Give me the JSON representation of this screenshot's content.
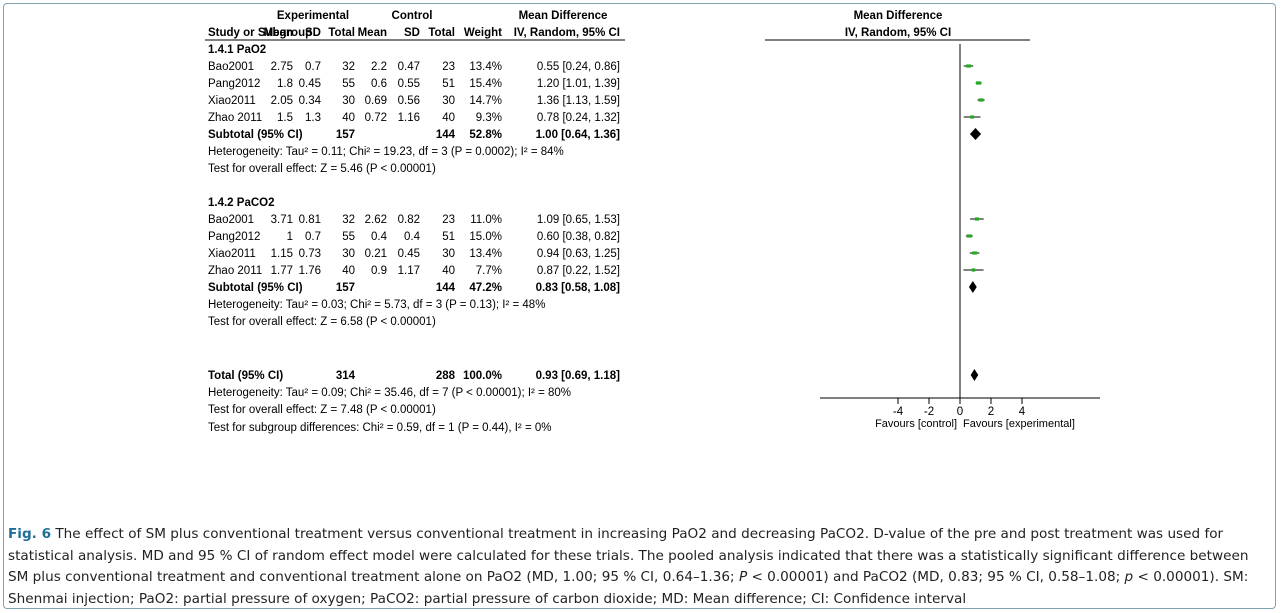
{
  "headers": {
    "group_experimental": "Experimental",
    "group_control": "Control",
    "group_md": "Mean Difference",
    "plot_title": "Mean Difference",
    "study": "Study or Subgroup",
    "mean": "Mean",
    "sd": "SD",
    "total": "Total",
    "weight": "Weight",
    "md_col": "IV, Random, 95% CI",
    "plot_subtitle": "IV, Random, 95% CI"
  },
  "subgroups": [
    {
      "title": "1.4.1 PaO2",
      "studies": [
        {
          "name": "Bao2001",
          "e_mean": "2.75",
          "e_sd": "0.7",
          "e_total": "32",
          "c_mean": "2.2",
          "c_sd": "0.47",
          "c_total": "23",
          "weight": "13.4%",
          "ci": "0.55 [0.24, 0.86]"
        },
        {
          "name": "Pang2012",
          "e_mean": "1.8",
          "e_sd": "0.45",
          "e_total": "55",
          "c_mean": "0.6",
          "c_sd": "0.55",
          "c_total": "51",
          "weight": "15.4%",
          "ci": "1.20 [1.01, 1.39]"
        },
        {
          "name": "Xiao2011",
          "e_mean": "2.05",
          "e_sd": "0.34",
          "e_total": "30",
          "c_mean": "0.69",
          "c_sd": "0.56",
          "c_total": "30",
          "weight": "14.7%",
          "ci": "1.36 [1.13, 1.59]"
        },
        {
          "name": "Zhao 2011",
          "e_mean": "1.5",
          "e_sd": "1.3",
          "e_total": "40",
          "c_mean": "0.72",
          "c_sd": "1.16",
          "c_total": "40",
          "weight": "9.3%",
          "ci": "0.78 [0.24, 1.32]"
        }
      ],
      "subtotal": {
        "label": "Subtotal (95% CI)",
        "e_total": "157",
        "c_total": "144",
        "weight": "52.8%",
        "ci": "1.00 [0.64, 1.36]"
      },
      "heterogeneity": "Heterogeneity: Tau² = 0.11; Chi² = 19.23, df = 3 (P = 0.0002); I² = 84%",
      "overall": "Test for overall effect: Z = 5.46 (P < 0.00001)"
    },
    {
      "title": "1.4.2 PaCO2",
      "studies": [
        {
          "name": "Bao2001",
          "e_mean": "3.71",
          "e_sd": "0.81",
          "e_total": "32",
          "c_mean": "2.62",
          "c_sd": "0.82",
          "c_total": "23",
          "weight": "11.0%",
          "ci": "1.09 [0.65, 1.53]"
        },
        {
          "name": "Pang2012",
          "e_mean": "1",
          "e_sd": "0.7",
          "e_total": "55",
          "c_mean": "0.4",
          "c_sd": "0.4",
          "c_total": "51",
          "weight": "15.0%",
          "ci": "0.60 [0.38, 0.82]"
        },
        {
          "name": "Xiao2011",
          "e_mean": "1.15",
          "e_sd": "0.73",
          "e_total": "30",
          "c_mean": "0.21",
          "c_sd": "0.45",
          "c_total": "30",
          "weight": "13.4%",
          "ci": "0.94 [0.63, 1.25]"
        },
        {
          "name": "Zhao 2011",
          "e_mean": "1.77",
          "e_sd": "1.76",
          "e_total": "40",
          "c_mean": "0.9",
          "c_sd": "1.17",
          "c_total": "40",
          "weight": "7.7%",
          "ci": "0.87 [0.22, 1.52]"
        }
      ],
      "subtotal": {
        "label": "Subtotal (95% CI)",
        "e_total": "157",
        "c_total": "144",
        "weight": "47.2%",
        "ci": "0.83 [0.58, 1.08]"
      },
      "heterogeneity": "Heterogeneity: Tau² = 0.03; Chi² = 5.73, df = 3 (P = 0.13); I² = 48%",
      "overall": "Test for overall effect: Z = 6.58 (P < 0.00001)"
    }
  ],
  "total": {
    "label": "Total (95% CI)",
    "e_total": "314",
    "c_total": "288",
    "weight": "100.0%",
    "ci": "0.93 [0.69, 1.18]"
  },
  "total_heterogeneity": "Heterogeneity: Tau² = 0.09; Chi² = 35.46, df = 7 (P < 0.00001); I² = 80%",
  "total_overall": "Test for overall effect: Z = 7.48 (P < 0.00001)",
  "subgroup_diff": "Test for subgroup differences: Chi² = 0.59, df = 1 (P = 0.44), I² = 0%",
  "axis": {
    "ticks": [
      "-4",
      "-2",
      "0",
      "2",
      "4"
    ],
    "favours_left": "Favours [control]",
    "favours_right": "Favours [experimental]"
  },
  "caption": {
    "label": "Fig. 6",
    "part1": "The effect of SM plus conventional treatment versus conventional treatment in increasing PaO2 and decreasing PaCO2. D-value of the pre and post treatment was used for statistical analysis. MD and 95 % CI of random effect model were calculated for these trials. The pooled analysis indicated that there was a statistically significant difference between SM plus conventional treatment and conventional treatment alone on PaO2 (MD, 1.00; 95 % CI, 0.64–1.36; ",
    "p1": "P",
    "part2": " < 0.00001) and PaCO2 (MD, 0.83; 95 % CI, 0.58–1.08; ",
    "p2": "p",
    "part3": " < 0.00001). SM: Shenmai injection; PaO2: partial pressure of oxygen; PaCO2: partial pressure of carbon dioxide; MD: Mean difference; CI: Confidence interval"
  },
  "colors": {
    "square": "#22aa22",
    "frame": "#7fa3b2",
    "caption_label": "#1f6f98"
  },
  "chart_data": {
    "type": "forest",
    "xlim": [
      -4,
      4
    ],
    "xticks": [
      -4,
      -2,
      0,
      2,
      4
    ],
    "reference_line": 0,
    "studies": [
      {
        "group": "1.4.1 PaO2",
        "name": "Bao2001",
        "md": 0.55,
        "lo": 0.24,
        "hi": 0.86,
        "weight": 13.4
      },
      {
        "group": "1.4.1 PaO2",
        "name": "Pang2012",
        "md": 1.2,
        "lo": 1.01,
        "hi": 1.39,
        "weight": 15.4
      },
      {
        "group": "1.4.1 PaO2",
        "name": "Xiao2011",
        "md": 1.36,
        "lo": 1.13,
        "hi": 1.59,
        "weight": 14.7
      },
      {
        "group": "1.4.1 PaO2",
        "name": "Zhao 2011",
        "md": 0.78,
        "lo": 0.24,
        "hi": 1.32,
        "weight": 9.3
      },
      {
        "group": "1.4.2 PaCO2",
        "name": "Bao2001",
        "md": 1.09,
        "lo": 0.65,
        "hi": 1.53,
        "weight": 11.0
      },
      {
        "group": "1.4.2 PaCO2",
        "name": "Pang2012",
        "md": 0.6,
        "lo": 0.38,
        "hi": 0.82,
        "weight": 15.0
      },
      {
        "group": "1.4.2 PaCO2",
        "name": "Xiao2011",
        "md": 0.94,
        "lo": 0.63,
        "hi": 1.25,
        "weight": 13.4
      },
      {
        "group": "1.4.2 PaCO2",
        "name": "Zhao 2011",
        "md": 0.87,
        "lo": 0.22,
        "hi": 1.52,
        "weight": 7.7
      }
    ],
    "diamonds": [
      {
        "name": "Subtotal 1.4.1 PaO2",
        "md": 1.0,
        "lo": 0.64,
        "hi": 1.36
      },
      {
        "name": "Subtotal 1.4.2 PaCO2",
        "md": 0.83,
        "lo": 0.58,
        "hi": 1.08
      },
      {
        "name": "Total",
        "md": 0.93,
        "lo": 0.69,
        "hi": 1.18
      }
    ]
  }
}
